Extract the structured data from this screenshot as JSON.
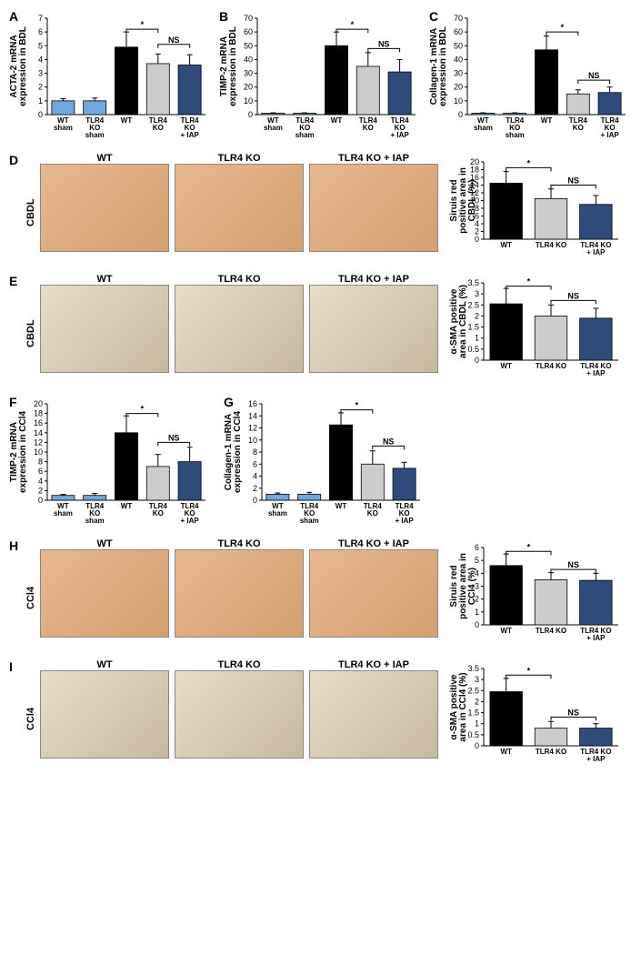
{
  "colors": {
    "blue_light": "#6fa8dc",
    "black": "#000000",
    "grey": "#cccccc",
    "navy": "#1f3a5f"
  },
  "panelA": {
    "letter": "A",
    "ylabel": "ACTA-2 mRNA expression in BDL",
    "ylim": [
      0,
      7
    ],
    "ytick_step": 1,
    "categories": [
      "WT sham",
      "TLR4 KO sham",
      "WT",
      "TLR4 KO",
      "TLR4 KO + IAP"
    ],
    "values": [
      1.0,
      1.0,
      4.9,
      3.7,
      3.6
    ],
    "errors": [
      0.15,
      0.2,
      1.1,
      0.7,
      0.75
    ],
    "bar_colors": [
      "#6fa8dc",
      "#6fa8dc",
      "#000000",
      "#cccccc",
      "#2f4b7c"
    ],
    "sig": [
      {
        "from": 2,
        "to": 3,
        "label": "*",
        "y": 6.2
      },
      {
        "from": 3,
        "to": 4,
        "label": "NS",
        "y": 5.1
      }
    ]
  },
  "panelB": {
    "letter": "B",
    "ylabel": "TIMP-2 mRNA expression in BDL",
    "ylim": [
      0,
      70
    ],
    "ytick_step": 10,
    "categories": [
      "WT sham",
      "TLR4 KO sham",
      "WT",
      "TLR4 KO",
      "TLR4 KO + IAP"
    ],
    "values": [
      1.0,
      1.0,
      50,
      35,
      31
    ],
    "errors": [
      0.3,
      0.3,
      10,
      10,
      9
    ],
    "bar_colors": [
      "#6fa8dc",
      "#6fa8dc",
      "#000000",
      "#cccccc",
      "#2f4b7c"
    ],
    "sig": [
      {
        "from": 2,
        "to": 3,
        "label": "*",
        "y": 62
      },
      {
        "from": 3,
        "to": 4,
        "label": "NS",
        "y": 48
      }
    ]
  },
  "panelC": {
    "letter": "C",
    "ylabel": "Collagen-1 mRNA expression in BDL",
    "ylim": [
      0,
      70
    ],
    "ytick_step": 10,
    "categories": [
      "WT sham",
      "TLR4 KO sham",
      "WT",
      "TLR4 KO",
      "TLR4 KO + IAP"
    ],
    "values": [
      1.0,
      1.0,
      47,
      15,
      16
    ],
    "errors": [
      0.3,
      0.3,
      10,
      3,
      4
    ],
    "bar_colors": [
      "#6fa8dc",
      "#6fa8dc",
      "#000000",
      "#cccccc",
      "#2f4b7c"
    ],
    "sig": [
      {
        "from": 2,
        "to": 3,
        "label": "*",
        "y": 60
      },
      {
        "from": 3,
        "to": 4,
        "label": "NS",
        "y": 25
      }
    ]
  },
  "panelD": {
    "letter": "D",
    "row_label": "CBDL",
    "img_labels": [
      "WT",
      "TLR4 KO",
      "TLR4 KO + IAP"
    ],
    "chart": {
      "ylabel": "Siruis red positive area in CBDL (%)",
      "ylim": [
        0,
        20
      ],
      "ytick_step": 2,
      "categories": [
        "WT",
        "TLR4 KO",
        "TLR4 KO + IAP"
      ],
      "values": [
        14.5,
        10.5,
        9.0
      ],
      "errors": [
        3.0,
        2.5,
        2.3
      ],
      "bar_colors": [
        "#000000",
        "#cccccc",
        "#2f4b7c"
      ],
      "sig": [
        {
          "from": 0,
          "to": 1,
          "label": "*",
          "y": 18.5
        },
        {
          "from": 1,
          "to": 2,
          "label": "NS",
          "y": 14
        }
      ]
    }
  },
  "panelE": {
    "letter": "E",
    "row_label": "CBDL",
    "img_labels": [
      "WT",
      "TLR4 KO",
      "TLR4 KO + IAP"
    ],
    "chart": {
      "ylabel": "α-SMA positive area in CBDL (%)",
      "ylim": [
        0,
        3.5
      ],
      "ytick_step": 0.5,
      "categories": [
        "WT",
        "TLR4 KO",
        "TLR4 KO + IAP"
      ],
      "values": [
        2.55,
        2.0,
        1.9
      ],
      "errors": [
        0.7,
        0.5,
        0.45
      ],
      "bar_colors": [
        "#000000",
        "#cccccc",
        "#2f4b7c"
      ],
      "sig": [
        {
          "from": 0,
          "to": 1,
          "label": "*",
          "y": 3.35
        },
        {
          "from": 1,
          "to": 2,
          "label": "NS",
          "y": 2.7
        }
      ]
    }
  },
  "panelF": {
    "letter": "F",
    "ylabel": "TIMP-2 mRNA expression in CCl4",
    "ylim": [
      0,
      20
    ],
    "ytick_step": 2,
    "categories": [
      "WT sham",
      "TLR4 KO sham",
      "WT",
      "TLR4 KO",
      "TLR4 KO + IAP"
    ],
    "values": [
      1.0,
      1.0,
      14,
      7,
      8
    ],
    "errors": [
      0.2,
      0.4,
      3.5,
      2.5,
      3
    ],
    "bar_colors": [
      "#6fa8dc",
      "#6fa8dc",
      "#000000",
      "#cccccc",
      "#2f4b7c"
    ],
    "sig": [
      {
        "from": 2,
        "to": 3,
        "label": "*",
        "y": 18
      },
      {
        "from": 3,
        "to": 4,
        "label": "NS",
        "y": 12
      }
    ]
  },
  "panelG": {
    "letter": "G",
    "ylabel": "Collagen-1 mRNA expression in CCl4",
    "ylim": [
      0,
      16
    ],
    "ytick_step": 2,
    "categories": [
      "WT sham",
      "TLR4 KO sham",
      "WT",
      "TLR4 KO",
      "TLR4 KO + IAP"
    ],
    "values": [
      1.0,
      1.0,
      12.5,
      6,
      5.3
    ],
    "errors": [
      0.2,
      0.3,
      2,
      2.2,
      1
    ],
    "bar_colors": [
      "#6fa8dc",
      "#6fa8dc",
      "#000000",
      "#cccccc",
      "#2f4b7c"
    ],
    "sig": [
      {
        "from": 2,
        "to": 3,
        "label": "*",
        "y": 15
      },
      {
        "from": 3,
        "to": 4,
        "label": "NS",
        "y": 9
      }
    ]
  },
  "panelH": {
    "letter": "H",
    "row_label": "CCl4",
    "img_labels": [
      "WT",
      "TLR4 KO",
      "TLR4 KO + IAP"
    ],
    "chart": {
      "ylabel": "Siruis red positive area in CCl4 (%)",
      "ylim": [
        0,
        6
      ],
      "ytick_step": 1,
      "categories": [
        "WT",
        "TLR4 KO",
        "TLR4 KO + IAP"
      ],
      "values": [
        4.6,
        3.5,
        3.45
      ],
      "errors": [
        0.9,
        0.55,
        0.55
      ],
      "bar_colors": [
        "#000000",
        "#cccccc",
        "#2f4b7c"
      ],
      "sig": [
        {
          "from": 0,
          "to": 1,
          "label": "*",
          "y": 5.7
        },
        {
          "from": 1,
          "to": 2,
          "label": "NS",
          "y": 4.3
        }
      ]
    }
  },
  "panelI": {
    "letter": "I",
    "row_label": "CCl4",
    "img_labels": [
      "WT",
      "TLR4 KO",
      "TLR4 KO + IAP"
    ],
    "chart": {
      "ylabel": "α-SMA positive area in CCl4 (%)",
      "ylim": [
        0,
        3.5
      ],
      "ytick_step": 0.5,
      "categories": [
        "WT",
        "TLR4 KO",
        "TLR4 KO + IAP"
      ],
      "values": [
        2.45,
        0.8,
        0.8
      ],
      "errors": [
        0.6,
        0.3,
        0.2
      ],
      "bar_colors": [
        "#000000",
        "#cccccc",
        "#2f4b7c"
      ],
      "sig": [
        {
          "from": 0,
          "to": 1,
          "label": "*",
          "y": 3.2
        },
        {
          "from": 1,
          "to": 2,
          "label": "NS",
          "y": 1.3
        }
      ]
    }
  }
}
